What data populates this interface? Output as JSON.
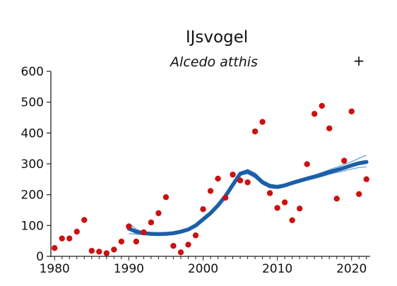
{
  "chart_data": {
    "type": "scatter",
    "title": "IJsvogel",
    "subtitle": "Alcedo atthis",
    "trend_symbol": "+",
    "xlabel": "",
    "ylabel": "",
    "xlim": [
      1979.5,
      2022.5
    ],
    "ylim": [
      0,
      600
    ],
    "xticks": [
      1980,
      1990,
      2000,
      2010,
      2020
    ],
    "yticks": [
      0,
      100,
      200,
      300,
      400,
      500,
      600
    ],
    "grid": false,
    "colors": {
      "points": "#cc1111",
      "trend": "#1a5fa8",
      "trend_band": "#6ea0d6",
      "axis": "#222222"
    },
    "points": [
      {
        "x": 1980,
        "y": 27
      },
      {
        "x": 1981,
        "y": 58
      },
      {
        "x": 1982,
        "y": 58
      },
      {
        "x": 1983,
        "y": 80
      },
      {
        "x": 1984,
        "y": 118
      },
      {
        "x": 1985,
        "y": 18
      },
      {
        "x": 1986,
        "y": 15
      },
      {
        "x": 1987,
        "y": 10
      },
      {
        "x": 1988,
        "y": 22
      },
      {
        "x": 1989,
        "y": 48
      },
      {
        "x": 1990,
        "y": 97
      },
      {
        "x": 1991,
        "y": 48
      },
      {
        "x": 1992,
        "y": 78
      },
      {
        "x": 1993,
        "y": 110
      },
      {
        "x": 1994,
        "y": 140
      },
      {
        "x": 1995,
        "y": 192
      },
      {
        "x": 1996,
        "y": 34
      },
      {
        "x": 1997,
        "y": 13
      },
      {
        "x": 1998,
        "y": 38
      },
      {
        "x": 1999,
        "y": 68
      },
      {
        "x": 2000,
        "y": 153
      },
      {
        "x": 2001,
        "y": 212
      },
      {
        "x": 2002,
        "y": 252
      },
      {
        "x": 2003,
        "y": 190
      },
      {
        "x": 2004,
        "y": 265
      },
      {
        "x": 2005,
        "y": 246
      },
      {
        "x": 2006,
        "y": 240
      },
      {
        "x": 2007,
        "y": 405
      },
      {
        "x": 2008,
        "y": 436
      },
      {
        "x": 2009,
        "y": 205
      },
      {
        "x": 2010,
        "y": 157
      },
      {
        "x": 2011,
        "y": 175
      },
      {
        "x": 2012,
        "y": 117
      },
      {
        "x": 2013,
        "y": 155
      },
      {
        "x": 2014,
        "y": 299
      },
      {
        "x": 2015,
        "y": 462
      },
      {
        "x": 2016,
        "y": 488
      },
      {
        "x": 2017,
        "y": 415
      },
      {
        "x": 2018,
        "y": 187
      },
      {
        "x": 2019,
        "y": 310
      },
      {
        "x": 2020,
        "y": 470
      },
      {
        "x": 2021,
        "y": 202
      },
      {
        "x": 2022,
        "y": 250
      }
    ],
    "trend": {
      "x": [
        1990,
        1991,
        1992,
        1993,
        1994,
        1995,
        1996,
        1997,
        1998,
        1999,
        2000,
        2001,
        2002,
        2003,
        2004,
        2005,
        2006,
        2007,
        2008,
        2009,
        2010,
        2011,
        2012,
        2013,
        2014,
        2015,
        2016,
        2017,
        2018,
        2019,
        2020,
        2021,
        2022
      ],
      "mid": [
        90,
        80,
        75,
        73,
        72,
        73,
        75,
        80,
        87,
        100,
        120,
        140,
        165,
        195,
        232,
        268,
        275,
        262,
        240,
        228,
        225,
        230,
        238,
        245,
        252,
        258,
        265,
        273,
        280,
        287,
        295,
        302,
        306
      ],
      "upper": [
        108,
        88,
        78,
        75,
        74,
        74,
        77,
        82,
        89,
        102,
        123,
        143,
        168,
        198,
        236,
        273,
        282,
        270,
        247,
        234,
        230,
        235,
        243,
        250,
        257,
        264,
        272,
        281,
        289,
        298,
        307,
        318,
        328
      ],
      "lower": [
        74,
        72,
        70,
        70,
        70,
        71,
        73,
        77,
        84,
        97,
        117,
        137,
        162,
        192,
        228,
        263,
        268,
        255,
        234,
        222,
        220,
        225,
        233,
        240,
        247,
        253,
        259,
        266,
        272,
        277,
        283,
        288,
        290
      ]
    }
  }
}
